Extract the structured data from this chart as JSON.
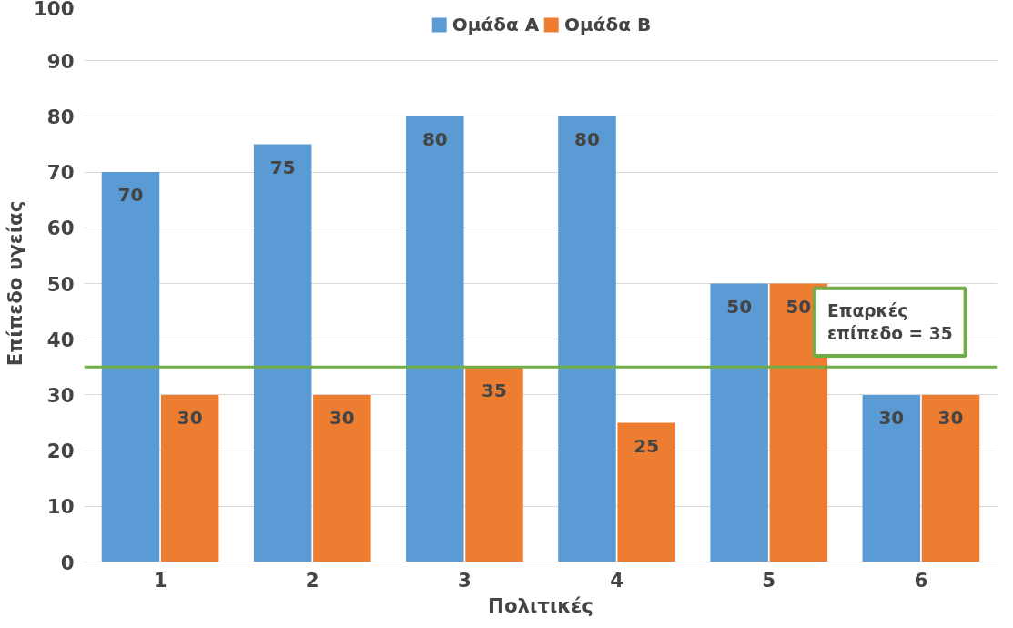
{
  "chart_data": {
    "type": "bar",
    "xlabel": "Πολιτικές",
    "ylabel": "Επίπεδο υγείας",
    "categories": [
      "1",
      "2",
      "3",
      "4",
      "5",
      "6"
    ],
    "series": [
      {
        "name": "Ομάδα Α",
        "color": "#5b9bd5",
        "values": [
          70,
          75,
          80,
          80,
          50,
          30
        ]
      },
      {
        "name": "Ομάδα Β",
        "color": "#ed7d31",
        "values": [
          30,
          30,
          35,
          25,
          50,
          30
        ]
      }
    ],
    "ylim": [
      0,
      100
    ],
    "yticks": [
      0,
      10,
      20,
      30,
      40,
      50,
      60,
      70,
      80,
      90,
      100
    ],
    "grid": "y",
    "legend": "top",
    "data_labels": true,
    "ref_lines": [
      {
        "axis": "y",
        "value": 35,
        "label": "Επαρκές\nεπίπεδο = 35",
        "color": "#70ad47",
        "line_style": "solid"
      }
    ]
  }
}
